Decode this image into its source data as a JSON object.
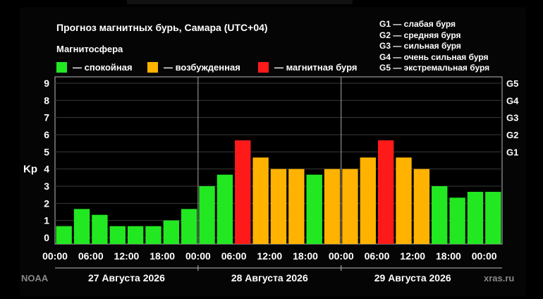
{
  "legend": {
    "heading": "Магнитосфера",
    "items": [
      {
        "label": "— спокойная",
        "color": "#22e822"
      },
      {
        "label": "— возбужденная",
        "color": "#ffb300"
      },
      {
        "label": "— магнитная буря",
        "color": "#ff1a1a"
      }
    ]
  },
  "storm_scale": [
    "G1 — слабая буря",
    "G2 — средняя буря",
    "G3 — сильная буря",
    "G4 — очень сильная буря",
    "G5 — экстремальная буря"
  ],
  "footer": {
    "source": "NOAA",
    "site": "xras.ru"
  },
  "chart_data": {
    "type": "bar",
    "title": "Прогноз магнитных бурь, Самара (UTC+04)",
    "ylabel": "Kp",
    "ylim": [
      0,
      9
    ],
    "yticks": [
      "0",
      "1",
      "2",
      "3",
      "4",
      "5",
      "6",
      "7",
      "8",
      "9"
    ],
    "right_axis_labels": [
      {
        "label": "G1",
        "kp": 5
      },
      {
        "label": "G2",
        "kp": 6
      },
      {
        "label": "G3",
        "kp": 7
      },
      {
        "label": "G4",
        "kp": 8
      },
      {
        "label": "G5",
        "kp": 9
      }
    ],
    "xtick_labels": [
      "00:00",
      "06:00",
      "12:00",
      "18:00",
      "00:00",
      "06:00",
      "12:00",
      "18:00",
      "00:00",
      "06:00",
      "12:00",
      "18:00",
      "00:00"
    ],
    "day_labels": [
      "27 Августа 2026",
      "28 Августа 2026",
      "29 Августа 2026"
    ],
    "grid": true,
    "interval_hours": 3,
    "values": [
      0.67,
      1.67,
      1.33,
      0.67,
      0.67,
      0.67,
      1.0,
      1.67,
      3.0,
      3.67,
      5.67,
      4.67,
      4.0,
      4.0,
      3.67,
      4.0,
      4.0,
      4.67,
      5.67,
      4.67,
      4.0,
      3.0,
      2.33,
      2.67,
      2.67
    ],
    "colors": {
      "quiet": "#22e822",
      "active": "#ffb300",
      "storm": "#ff1a1a"
    },
    "levels": [
      "quiet",
      "quiet",
      "quiet",
      "quiet",
      "quiet",
      "quiet",
      "quiet",
      "quiet",
      "quiet",
      "quiet",
      "storm",
      "active",
      "active",
      "active",
      "quiet",
      "active",
      "active",
      "active",
      "storm",
      "active",
      "active",
      "quiet",
      "quiet",
      "quiet",
      "quiet"
    ]
  }
}
